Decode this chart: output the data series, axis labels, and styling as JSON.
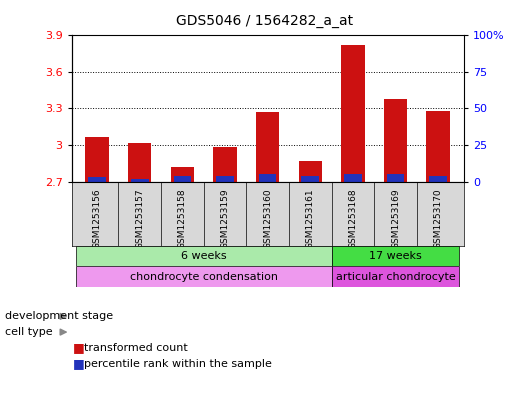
{
  "title": "GDS5046 / 1564282_a_at",
  "samples": [
    "GSM1253156",
    "GSM1253157",
    "GSM1253158",
    "GSM1253159",
    "GSM1253160",
    "GSM1253161",
    "GSM1253168",
    "GSM1253169",
    "GSM1253170"
  ],
  "transformed_count": [
    3.07,
    3.02,
    2.82,
    2.98,
    3.27,
    2.87,
    3.82,
    3.38,
    3.28
  ],
  "percentile_rank": [
    3,
    2,
    4,
    4,
    5,
    4,
    5,
    5,
    4
  ],
  "bar_bottom": 2.7,
  "ylim_left": [
    2.7,
    3.9
  ],
  "yticks_left": [
    2.7,
    3.0,
    3.3,
    3.6,
    3.9
  ],
  "ytick_labels_left": [
    "2.7",
    "3",
    "3.3",
    "3.6",
    "3.9"
  ],
  "yticks_right": [
    0,
    25,
    50,
    75,
    100
  ],
  "ytick_labels_right": [
    "0",
    "25",
    "50",
    "75",
    "100%"
  ],
  "red_color": "#cc1111",
  "blue_color": "#2233bb",
  "dev_stage_groups": [
    {
      "label": "6 weeks",
      "start": 0,
      "end": 6,
      "color": "#aaeaaa"
    },
    {
      "label": "17 weeks",
      "start": 6,
      "end": 9,
      "color": "#44dd44"
    }
  ],
  "cell_type_groups": [
    {
      "label": "chondrocyte condensation",
      "start": 0,
      "end": 6,
      "color": "#ee99ee"
    },
    {
      "label": "articular chondrocyte",
      "start": 6,
      "end": 9,
      "color": "#dd55dd"
    }
  ],
  "dev_stage_label": "development stage",
  "cell_type_label": "cell type",
  "legend_red": "transformed count",
  "legend_blue": "percentile rank within the sample",
  "bar_width": 0.55,
  "plot_facecolor": "#ffffff",
  "label_box_color": "#d8d8d8",
  "fig_bg": "#ffffff"
}
